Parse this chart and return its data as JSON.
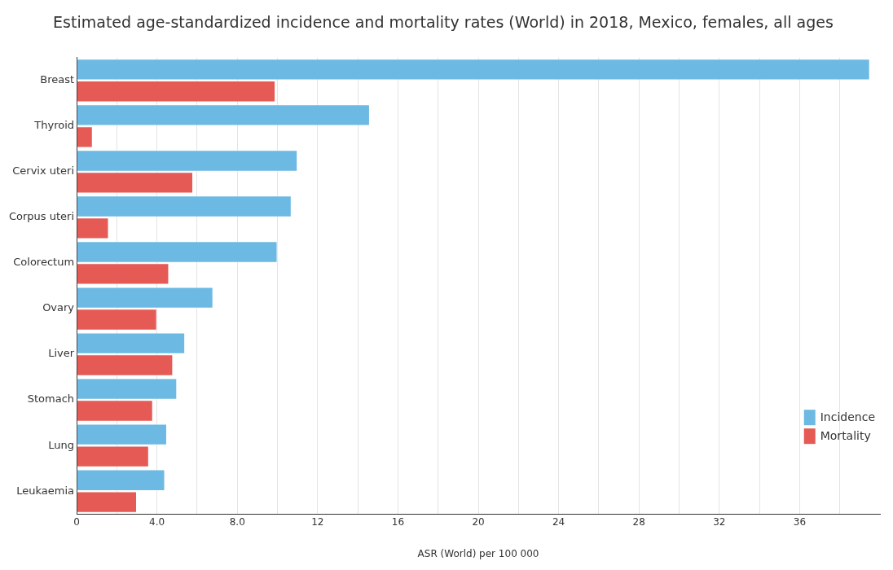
{
  "chart_data": {
    "type": "bar",
    "orientation": "horizontal",
    "title": "Estimated age-standardized incidence and mortality rates (World) in 2018, Mexico, females, all ages",
    "xlabel": "ASR (World) per 100 000",
    "categories": [
      "Breast",
      "Thyroid",
      "Cervix uteri",
      "Corpus uteri",
      "Colorectum",
      "Ovary",
      "Liver",
      "Stomach",
      "Lung",
      "Leukaemia"
    ],
    "series": [
      {
        "name": "Incidence",
        "color": "#6cb9e3",
        "values": [
          39.5,
          14.6,
          11.0,
          10.7,
          10.0,
          6.8,
          5.4,
          5.0,
          4.5,
          4.4
        ]
      },
      {
        "name": "Mortality",
        "color": "#e55a54",
        "values": [
          9.9,
          0.8,
          5.8,
          1.6,
          4.6,
          4.0,
          4.8,
          3.8,
          3.6,
          3.0
        ]
      }
    ],
    "xlim": [
      0,
      40
    ],
    "xticks": [
      0,
      {
        "value": 2,
        "label": null
      },
      {
        "value": 4,
        "label": "4.0"
      },
      {
        "value": 6,
        "label": null
      },
      {
        "value": 8,
        "label": "8.0"
      },
      {
        "value": 10,
        "label": null
      },
      12,
      {
        "value": 14,
        "label": null
      },
      16,
      {
        "value": 18,
        "label": null
      },
      20,
      {
        "value": 22,
        "label": null
      },
      24,
      {
        "value": 26,
        "label": null
      },
      28,
      {
        "value": 30,
        "label": null
      },
      32,
      {
        "value": 34,
        "label": null
      },
      36,
      {
        "value": 38,
        "label": null
      }
    ],
    "grid": "x",
    "legend": "bottom right"
  }
}
